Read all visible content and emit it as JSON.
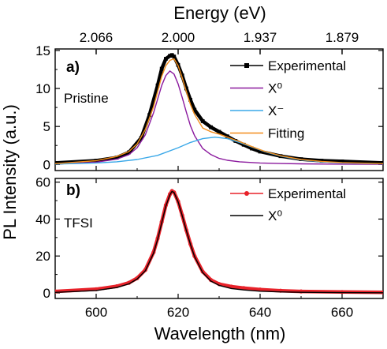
{
  "chart_data": {
    "type": "line",
    "top_axis": {
      "label": "Energy (eV)",
      "tick_labels": [
        "2.066",
        "2.000",
        "1.937",
        "1.879"
      ],
      "tick_wavelengths": [
        600,
        620,
        640,
        660
      ]
    },
    "x_axis": {
      "label": "Wavelength (nm)",
      "range": [
        590,
        670
      ],
      "ticks": [
        600,
        620,
        640,
        660
      ]
    },
    "y_label": "PL Intensity (a.u.)",
    "panels": [
      {
        "id": "a",
        "panel_label": "a)",
        "sample_label": "Pristine",
        "y_range": [
          -0.8,
          15.2
        ],
        "y_ticks": [
          0,
          5,
          10,
          15
        ],
        "series": [
          {
            "name": "Experimental",
            "role": "experimental",
            "color": "#000000",
            "marker": "square",
            "x": [
              590,
              600,
              605,
              608,
              611,
              613,
              615,
              616,
              617,
              618,
              618.5,
              619,
              620,
              621,
              622,
              623,
              624,
              626,
              628,
              630,
              632,
              634,
              636,
              638,
              640,
              645,
              650,
              655,
              660,
              670
            ],
            "y": [
              0.2,
              0.5,
              0.9,
              1.6,
              3.5,
              6.5,
              10.4,
              12.6,
              13.9,
              14.3,
              14.4,
              14.2,
              13.1,
              11.7,
              10.0,
              8.5,
              7.2,
              5.7,
              4.9,
              4.3,
              3.7,
              3.1,
              2.6,
              2.1,
              1.7,
              1.1,
              0.7,
              0.5,
              0.4,
              0.2
            ]
          },
          {
            "name": "X⁰",
            "role": "fit",
            "color": "#8b1a9e",
            "x": [
              590,
              600,
              605,
              608,
              610,
              612,
              614,
              615,
              616,
              617,
              618,
              619,
              620,
              621,
              622,
              623,
              624,
              626,
              628,
              630,
              632,
              635,
              640,
              645,
              650,
              660,
              670
            ],
            "y": [
              0.05,
              0.3,
              0.7,
              1.3,
              2.2,
              3.9,
              6.8,
              8.6,
              10.4,
              11.7,
              12.3,
              11.9,
              10.6,
              8.8,
              6.9,
              5.1,
              3.8,
              2.1,
              1.3,
              0.8,
              0.55,
              0.35,
              0.2,
              0.12,
              0.08,
              0.04,
              0.02
            ]
          },
          {
            "name": "X⁻",
            "role": "fit",
            "color": "#3aa8e8",
            "x": [
              590,
              600,
              605,
              610,
              615,
              620,
              623,
              626,
              629,
              632,
              635,
              638,
              641,
              645,
              650,
              655,
              660,
              670
            ],
            "y": [
              0.05,
              0.2,
              0.35,
              0.65,
              1.2,
              2.2,
              2.9,
              3.4,
              3.6,
              3.4,
              2.9,
              2.3,
              1.7,
              1.1,
              0.6,
              0.35,
              0.2,
              0.08
            ]
          },
          {
            "name": "Fitting",
            "role": "fit",
            "color": "#f28c1a",
            "x": [
              590,
              600,
              605,
              608,
              610,
              612,
              614,
              616,
              617,
              618,
              619,
              620,
              621,
              622,
              623,
              624,
              626,
              628,
              630,
              632,
              635,
              638,
              641,
              645,
              650,
              655,
              660,
              670
            ],
            "y": [
              0.1,
              0.5,
              1.05,
              1.7,
              2.7,
              4.6,
              7.6,
              11.6,
              13.0,
              13.7,
              13.9,
              13.0,
              11.4,
              9.6,
              7.9,
              6.6,
              4.8,
              4.3,
              4.0,
              3.6,
              3.0,
              2.35,
              1.75,
              1.15,
              0.65,
              0.4,
              0.25,
              0.1
            ]
          }
        ],
        "legend": [
          "Experimental",
          "X⁰",
          "X⁻",
          "Fitting"
        ]
      },
      {
        "id": "b",
        "panel_label": "b)",
        "sample_label": "TFSI",
        "y_range": [
          -3,
          62
        ],
        "y_ticks": [
          0,
          20,
          40,
          60
        ],
        "series": [
          {
            "name": "Experimental",
            "role": "experimental",
            "color": "#e8222a",
            "marker": "circle",
            "x": [
              590,
              600,
              605,
              608,
              610,
              612,
              614,
              615,
              616,
              617,
              618,
              618.5,
              619,
              620,
              621,
              622,
              623,
              624,
              626,
              628,
              630,
              633,
              636,
              640,
              645,
              650,
              660,
              670
            ],
            "y": [
              0.8,
              2.0,
              3.6,
              5.5,
              8.0,
              12.5,
              22.0,
              29.5,
              38.5,
              47.5,
              53.5,
              55.2,
              54.5,
              49.5,
              42.0,
              34.0,
              26.5,
              20.0,
              11.5,
              7.0,
              4.8,
              3.4,
              2.6,
              1.8,
              1.2,
              0.8,
              0.5,
              0.3
            ]
          },
          {
            "name": "X⁰",
            "role": "fit",
            "color": "#000000",
            "x": [
              590,
              600,
              605,
              608,
              610,
              612,
              614,
              615,
              616,
              617,
              618,
              618.5,
              619,
              620,
              621,
              622,
              623,
              624,
              626,
              628,
              630,
              633,
              636,
              640,
              645,
              650,
              660,
              670
            ],
            "y": [
              0.3,
              1.3,
              2.9,
              4.9,
              7.5,
              12.0,
              21.5,
              29.0,
              38.0,
              47.0,
              53.2,
              55.0,
              54.4,
              49.3,
              41.8,
              33.8,
              26.3,
              19.7,
              11.0,
              6.4,
              4.1,
              2.4,
              1.6,
              0.95,
              0.55,
              0.35,
              0.18,
              0.1
            ]
          }
        ],
        "legend": [
          "Experimental",
          "X⁰"
        ]
      }
    ]
  }
}
